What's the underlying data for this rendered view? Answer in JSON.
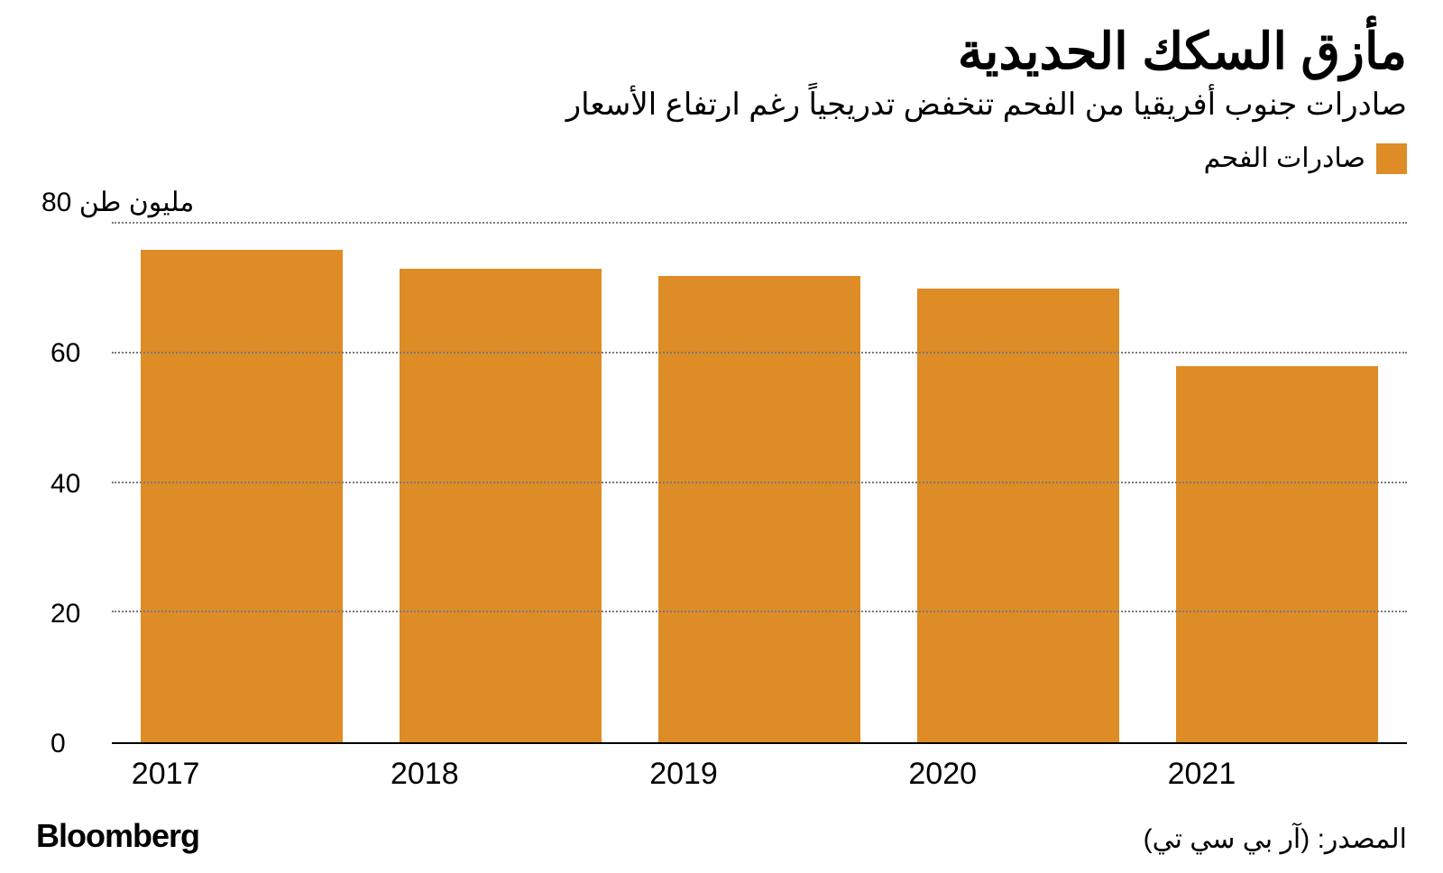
{
  "header": {
    "title": "مأزق السكك الحديدية",
    "subtitle": "صادرات جنوب أفريقيا من الفحم تنخفض تدريجياً رغم ارتفاع الأسعار"
  },
  "legend": {
    "label": "صادرات الفحم",
    "swatch_color": "#dd8c26"
  },
  "chart": {
    "type": "bar",
    "y_axis_title": "80 مليون طن",
    "y_max": 80,
    "y_ticks": [
      0,
      20,
      40,
      60
    ],
    "gridlines": [
      20,
      40,
      60,
      80
    ],
    "categories": [
      "2017",
      "2018",
      "2019",
      "2020",
      "2021"
    ],
    "values": [
      76,
      73,
      72,
      70,
      58
    ],
    "bar_color": "#dd8c26",
    "grid_color": "#7a7a7a",
    "axis_color": "#000000",
    "background_color": "#ffffff",
    "bar_width_ratio": 0.78
  },
  "footer": {
    "brand": "Bloomberg",
    "source": "المصدر: (آر بي سي تي)"
  }
}
